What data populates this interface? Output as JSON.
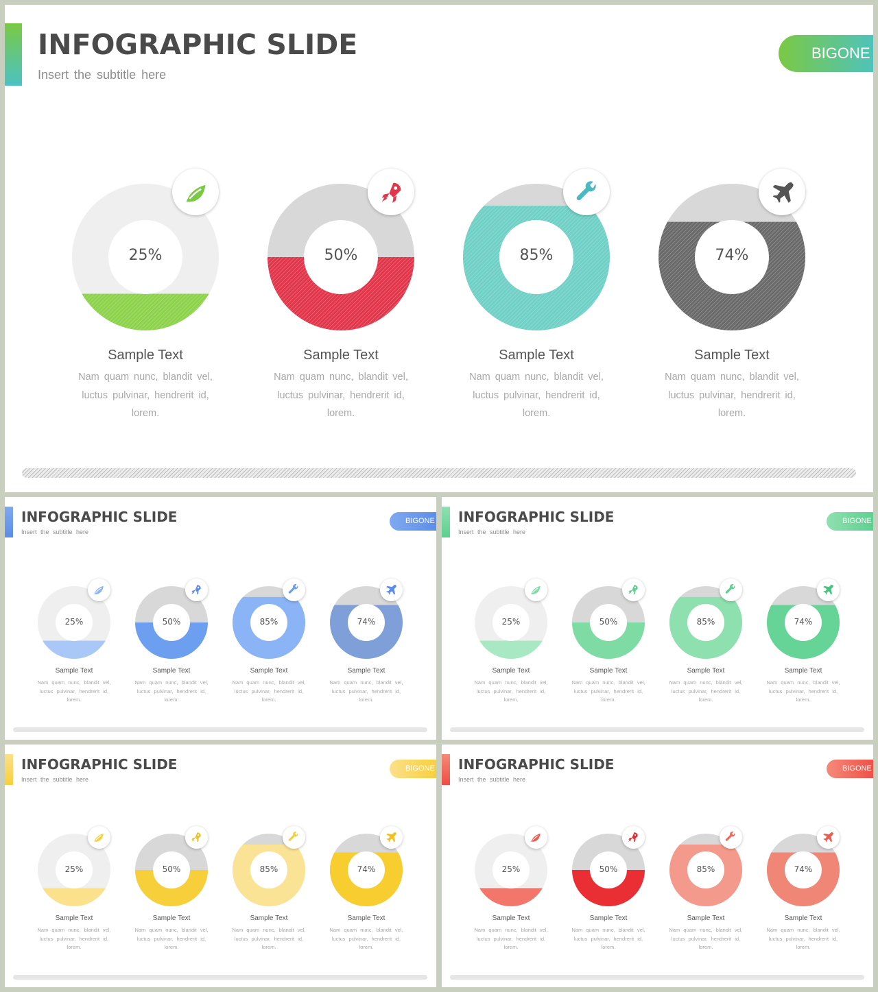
{
  "slides": [
    {
      "id": "main",
      "title": "INFOGRAPHIC SLIDE",
      "subtitle": "Insert  the  subtitle  here",
      "brand": "BIGONE",
      "accent_colors": [
        "#7ac943",
        "#4cc2c4"
      ],
      "cards": [
        {
          "percent": 0.25,
          "label": "25%",
          "color": "#8cd24b",
          "track": "#efefef",
          "icon": "leaf-icon",
          "icon_color": "#7ac943",
          "title": "Sample Text",
          "body": "Nam  quam  nunc,  blandit  vel,  luctus  pulvinar,  hendrerit  id,  lorem."
        },
        {
          "percent": 0.5,
          "label": "50%",
          "color": "#e2364b",
          "track": "#d8d8d8",
          "icon": "rocket-icon",
          "icon_color": "#e2364b",
          "title": "Sample Text",
          "body": "Nam  quam  nunc,  blandit  vel,  luctus  pulvinar,  hendrerit  id,  lorem."
        },
        {
          "percent": 0.85,
          "label": "85%",
          "color": "#6fd0c6",
          "track": "#d8d8d8",
          "icon": "wrench-icon",
          "icon_color": "#4cb8bf",
          "title": "Sample Text",
          "body": "Nam  quam  nunc,  blandit  vel,  luctus  pulvinar,  hendrerit  id,  lorem."
        },
        {
          "percent": 0.74,
          "label": "74%",
          "color": "#6a6a6a",
          "track": "#d8d8d8",
          "icon": "airplane-icon",
          "icon_color": "#555555",
          "title": "Sample Text",
          "body": "Nam  quam  nunc,  blandit  vel,  luctus  pulvinar,  hendrerit  id,  lorem."
        }
      ]
    },
    {
      "id": "blue",
      "title": "INFOGRAPHIC SLIDE",
      "subtitle": "Insert  the  subtitle  here",
      "brand": "BIGONE",
      "accent_colors": [
        "#7fa9f0",
        "#5b8de8"
      ],
      "cards": [
        {
          "percent": 0.25,
          "label": "25%",
          "color": "#a9c7f7",
          "track": "#efefef",
          "icon": "leaf-icon",
          "icon_color": "#8ab4f5",
          "title": "Sample Text",
          "body": "Nam  quam  nunc,  blandit  vel,  luctus  pulvinar,  hendrerit  id,  lorem."
        },
        {
          "percent": 0.5,
          "label": "50%",
          "color": "#6d9ff0",
          "track": "#d8d8d8",
          "icon": "rocket-icon",
          "icon_color": "#5b8de8",
          "title": "Sample Text",
          "body": "Nam  quam  nunc,  blandit  vel,  luctus  pulvinar,  hendrerit  id,  lorem."
        },
        {
          "percent": 0.85,
          "label": "85%",
          "color": "#8ab4f5",
          "track": "#d8d8d8",
          "icon": "wrench-icon",
          "icon_color": "#6d9ff0",
          "title": "Sample Text",
          "body": "Nam  quam  nunc,  blandit  vel,  luctus  pulvinar,  hendrerit  id,  lorem."
        },
        {
          "percent": 0.74,
          "label": "74%",
          "color": "#7f9fd8",
          "track": "#d8d8d8",
          "icon": "airplane-icon",
          "icon_color": "#5b8de8",
          "title": "Sample Text",
          "body": "Nam  quam  nunc,  blandit  vel,  luctus  pulvinar,  hendrerit  id,  lorem."
        }
      ]
    },
    {
      "id": "green",
      "title": "INFOGRAPHIC SLIDE",
      "subtitle": "Insert  the  subtitle  here",
      "brand": "BIGONE",
      "accent_colors": [
        "#8fe0b0",
        "#5ccf8e"
      ],
      "cards": [
        {
          "percent": 0.25,
          "label": "25%",
          "color": "#a8e8c2",
          "track": "#efefef",
          "icon": "leaf-icon",
          "icon_color": "#7ddba3",
          "title": "Sample Text",
          "body": "Nam  quam  nunc,  blandit  vel,  luctus  pulvinar,  hendrerit  id,  lorem."
        },
        {
          "percent": 0.5,
          "label": "50%",
          "color": "#7ddba3",
          "track": "#d8d8d8",
          "icon": "rocket-icon",
          "icon_color": "#5ccf8e",
          "title": "Sample Text",
          "body": "Nam  quam  nunc,  blandit  vel,  luctus  pulvinar,  hendrerit  id,  lorem."
        },
        {
          "percent": 0.85,
          "label": "85%",
          "color": "#8ee0ae",
          "track": "#d8d8d8",
          "icon": "wrench-icon",
          "icon_color": "#5ccf8e",
          "title": "Sample Text",
          "body": "Nam  quam  nunc,  blandit  vel,  luctus  pulvinar,  hendrerit  id,  lorem."
        },
        {
          "percent": 0.74,
          "label": "74%",
          "color": "#66d496",
          "track": "#d8d8d8",
          "icon": "airplane-icon",
          "icon_color": "#48c47f",
          "title": "Sample Text",
          "body": "Nam  quam  nunc,  blandit  vel,  luctus  pulvinar,  hendrerit  id,  lorem."
        }
      ]
    },
    {
      "id": "yellow",
      "title": "INFOGRAPHIC SLIDE",
      "subtitle": "Insert  the  subtitle  here",
      "brand": "BIGONE",
      "accent_colors": [
        "#fbe08a",
        "#f7cf3b"
      ],
      "cards": [
        {
          "percent": 0.25,
          "label": "25%",
          "color": "#fbe18c",
          "track": "#efefef",
          "icon": "leaf-icon",
          "icon_color": "#f7cf3b",
          "title": "Sample Text",
          "body": "Nam  quam  nunc,  blandit  vel,  luctus  pulvinar,  hendrerit  id,  lorem."
        },
        {
          "percent": 0.5,
          "label": "50%",
          "color": "#f7cf3b",
          "track": "#d8d8d8",
          "icon": "rocket-icon",
          "icon_color": "#f0c020",
          "title": "Sample Text",
          "body": "Nam  quam  nunc,  blandit  vel,  luctus  pulvinar,  hendrerit  id,  lorem."
        },
        {
          "percent": 0.85,
          "label": "85%",
          "color": "#fbe396",
          "track": "#d8d8d8",
          "icon": "wrench-icon",
          "icon_color": "#f7cf3b",
          "title": "Sample Text",
          "body": "Nam  quam  nunc,  blandit  vel,  luctus  pulvinar,  hendrerit  id,  lorem."
        },
        {
          "percent": 0.74,
          "label": "74%",
          "color": "#f7cd30",
          "track": "#d8d8d8",
          "icon": "airplane-icon",
          "icon_color": "#f0c020",
          "title": "Sample Text",
          "body": "Nam  quam  nunc,  blandit  vel,  luctus  pulvinar,  hendrerit  id,  lorem."
        }
      ]
    },
    {
      "id": "red",
      "title": "INFOGRAPHIC SLIDE",
      "subtitle": "Insert  the  subtitle  here",
      "brand": "BIGONE",
      "accent_colors": [
        "#f58a7a",
        "#ee4d45"
      ],
      "cards": [
        {
          "percent": 0.25,
          "label": "25%",
          "color": "#f2776a",
          "track": "#efefef",
          "icon": "leaf-icon",
          "icon_color": "#ee5a4e",
          "title": "Sample Text",
          "body": "Nam  quam  nunc,  blandit  vel,  luctus  pulvinar,  hendrerit  id,  lorem."
        },
        {
          "percent": 0.5,
          "label": "50%",
          "color": "#ea2f34",
          "track": "#d8d8d8",
          "icon": "rocket-icon",
          "icon_color": "#e02a2f",
          "title": "Sample Text",
          "body": "Nam  quam  nunc,  blandit  vel,  luctus  pulvinar,  hendrerit  id,  lorem."
        },
        {
          "percent": 0.85,
          "label": "85%",
          "color": "#f49a8c",
          "track": "#d8d8d8",
          "icon": "wrench-icon",
          "icon_color": "#ee6a5c",
          "title": "Sample Text",
          "body": "Nam  quam  nunc,  blandit  vel,  luctus  pulvinar,  hendrerit  id,  lorem."
        },
        {
          "percent": 0.74,
          "label": "74%",
          "color": "#ef8676",
          "track": "#d8d8d8",
          "icon": "airplane-icon",
          "icon_color": "#ee5a4e",
          "title": "Sample Text",
          "body": "Nam  quam  nunc,  blandit  vel,  luctus  pulvinar,  hendrerit  id,  lorem."
        }
      ]
    }
  ]
}
